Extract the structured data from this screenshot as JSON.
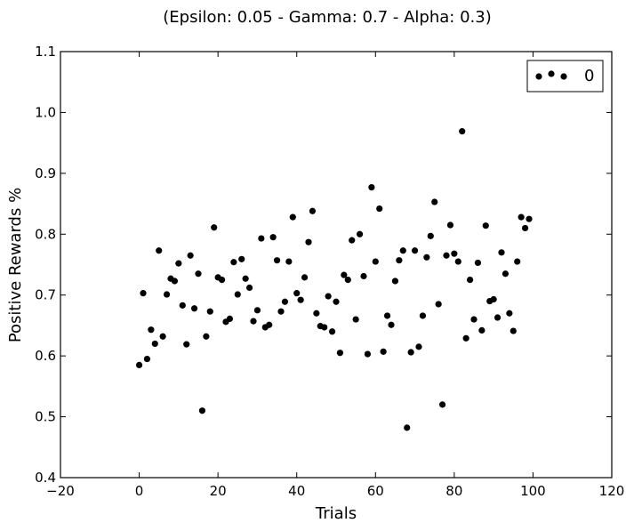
{
  "chart_data": {
    "type": "scatter",
    "title": "(Epsilon: 0.05 - Gamma: 0.7 - Alpha: 0.3)",
    "xlabel": "Trials",
    "ylabel": "Positive Rewards %",
    "xlim": [
      -20,
      120
    ],
    "ylim": [
      0.4,
      1.1
    ],
    "xticks": [
      -20,
      0,
      20,
      40,
      60,
      80,
      100,
      120
    ],
    "xtick_labels": [
      "−20",
      "0",
      "20",
      "40",
      "60",
      "80",
      "100",
      "120"
    ],
    "yticks": [
      0.4,
      0.5,
      0.6,
      0.7,
      0.8,
      0.9,
      1.0,
      1.1
    ],
    "ytick_labels": [
      "0.4",
      "0.5",
      "0.6",
      "0.7",
      "0.8",
      "0.9",
      "1.0",
      "1.1"
    ],
    "grid": false,
    "legend_position": "top-right",
    "marker_color": "#000000",
    "series": [
      {
        "name": "0",
        "x": [
          0,
          1,
          2,
          3,
          4,
          5,
          6,
          7,
          8,
          9,
          10,
          11,
          12,
          13,
          14,
          15,
          16,
          17,
          18,
          19,
          20,
          21,
          22,
          23,
          24,
          25,
          26,
          27,
          28,
          29,
          30,
          31,
          32,
          33,
          34,
          35,
          36,
          37,
          38,
          39,
          40,
          41,
          42,
          43,
          44,
          45,
          46,
          47,
          48,
          49,
          50,
          51,
          52,
          53,
          54,
          55,
          56,
          57,
          58,
          59,
          60,
          61,
          62,
          63,
          64,
          65,
          66,
          67,
          68,
          69,
          70,
          71,
          72,
          73,
          74,
          75,
          76,
          77,
          78,
          79,
          80,
          81,
          82,
          83,
          84,
          85,
          86,
          87,
          88,
          89,
          90,
          91,
          92,
          93,
          94,
          95,
          96,
          97,
          98,
          99
        ],
        "y": [
          0.585,
          0.703,
          0.595,
          0.643,
          0.62,
          0.773,
          0.632,
          0.701,
          0.727,
          0.723,
          0.752,
          0.683,
          0.619,
          0.765,
          0.678,
          0.735,
          0.51,
          0.632,
          0.673,
          0.811,
          0.729,
          0.725,
          0.656,
          0.661,
          0.754,
          0.701,
          0.759,
          0.727,
          0.712,
          0.657,
          0.675,
          0.793,
          0.647,
          0.651,
          0.795,
          0.757,
          0.673,
          0.689,
          0.755,
          0.828,
          0.703,
          0.692,
          0.729,
          0.787,
          0.838,
          0.67,
          0.649,
          0.647,
          0.698,
          0.64,
          0.689,
          0.605,
          0.733,
          0.725,
          0.79,
          0.66,
          0.8,
          0.731,
          0.603,
          0.877,
          0.755,
          0.842,
          0.607,
          0.666,
          0.651,
          0.723,
          0.757,
          0.773,
          0.482,
          0.606,
          0.773,
          0.615,
          0.666,
          0.762,
          0.797,
          0.853,
          0.685,
          0.52,
          0.765,
          0.815,
          0.768,
          0.755,
          0.969,
          0.629,
          0.725,
          0.66,
          0.753,
          0.642,
          0.814,
          0.69,
          0.693,
          0.663,
          0.77,
          0.735,
          0.67,
          0.641,
          0.755,
          0.828,
          0.81,
          0.825
        ]
      }
    ]
  }
}
